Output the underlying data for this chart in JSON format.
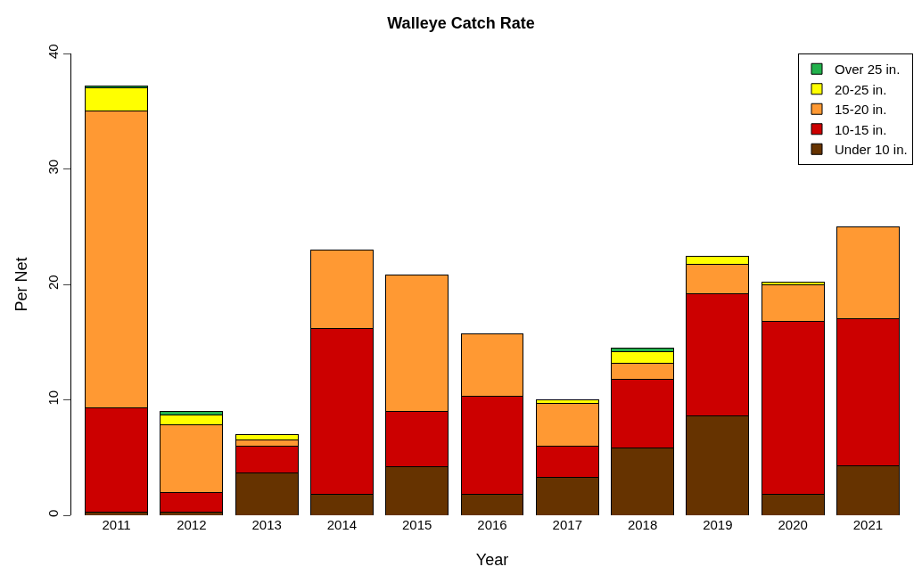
{
  "chart_data": {
    "type": "bar",
    "title": "Walleye Catch Rate",
    "xlabel": "Year",
    "ylabel": "Per Net",
    "categories": [
      "2011",
      "2012",
      "2013",
      "2014",
      "2015",
      "2016",
      "2017",
      "2018",
      "2019",
      "2020",
      "2021"
    ],
    "stacked": true,
    "series": [
      {
        "name": "Under 10 in.",
        "color": "#663300",
        "values": [
          0.3,
          0.3,
          3.7,
          1.8,
          4.2,
          1.8,
          3.3,
          5.8,
          8.6,
          1.8,
          4.3
        ]
      },
      {
        "name": "10-15 in.",
        "color": "#cc0000",
        "values": [
          9.0,
          1.7,
          2.3,
          14.4,
          4.8,
          8.5,
          2.7,
          6.0,
          10.6,
          15.0,
          12.7
        ]
      },
      {
        "name": "15-20 in.",
        "color": "#ff9933",
        "values": [
          25.7,
          5.8,
          0.5,
          6.8,
          11.8,
          5.4,
          3.7,
          1.4,
          2.5,
          3.2,
          8.0
        ]
      },
      {
        "name": "20-25 in.",
        "color": "#ffff00",
        "values": [
          2.0,
          0.9,
          0.5,
          null,
          null,
          null,
          0.3,
          1.0,
          0.7,
          0.2,
          null
        ]
      },
      {
        "name": "Over 25 in.",
        "color": "#22b14c",
        "values": [
          0.2,
          0.3,
          null,
          null,
          null,
          null,
          null,
          0.3,
          null,
          null,
          null
        ]
      }
    ],
    "ylim": [
      0,
      40
    ],
    "yticks": [
      0,
      10,
      20,
      30,
      40
    ],
    "legend": "top right"
  }
}
